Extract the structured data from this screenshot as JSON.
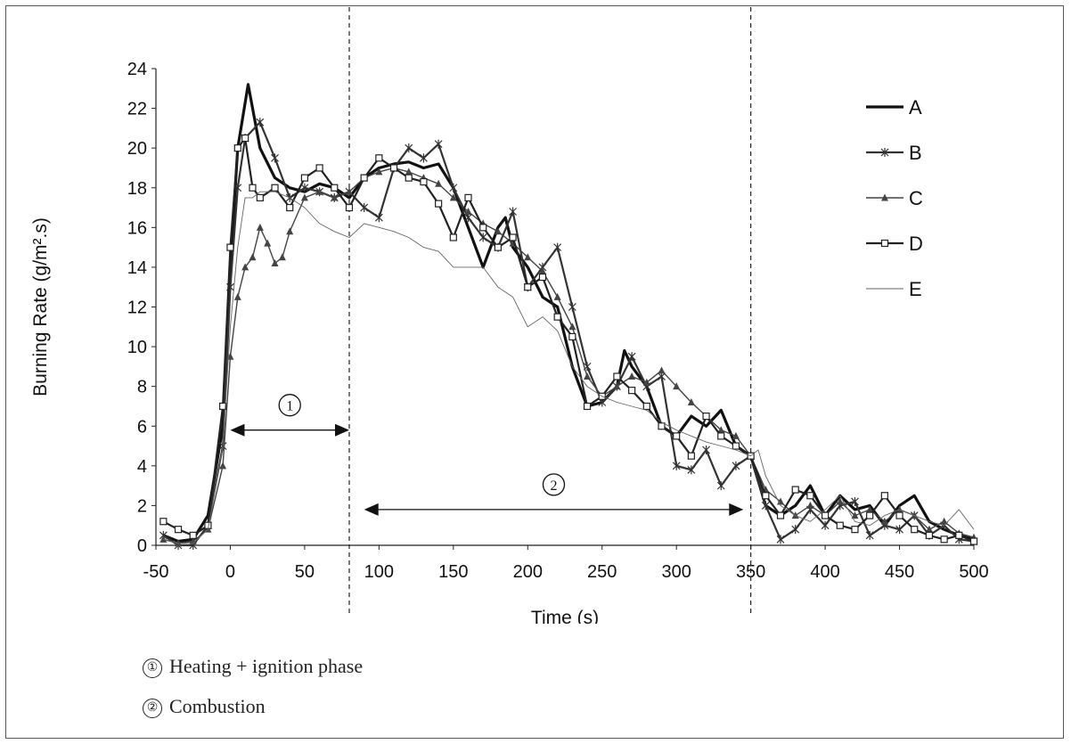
{
  "chart_data": {
    "type": "line",
    "title": "",
    "xlabel": "Time (s)",
    "ylabel": "Burning Rate (g/m².s)",
    "xlim": [
      -50,
      500
    ],
    "ylim": [
      0,
      24
    ],
    "x_ticks": [
      "-50",
      "0",
      "50",
      "100",
      "150",
      "200",
      "250",
      "300",
      "350",
      "400",
      "450",
      "500"
    ],
    "y_ticks": [
      "0",
      "2",
      "4",
      "6",
      "8",
      "10",
      "12",
      "14",
      "16",
      "18",
      "20",
      "22",
      "24"
    ],
    "legend_position": "top-right",
    "vertical_lines_x": [
      80,
      350
    ],
    "series": [
      {
        "name": "A",
        "color": "#111111",
        "marker": "none",
        "x": [
          -45,
          -35,
          -25,
          -15,
          -5,
          0,
          5,
          12,
          20,
          30,
          40,
          50,
          60,
          70,
          80,
          90,
          100,
          110,
          120,
          130,
          140,
          150,
          160,
          170,
          180,
          185,
          190,
          200,
          210,
          220,
          230,
          240,
          250,
          260,
          265,
          270,
          280,
          290,
          300,
          310,
          320,
          330,
          340,
          350,
          360,
          370,
          380,
          390,
          400,
          410,
          420,
          430,
          440,
          450,
          460,
          470,
          480,
          490,
          500
        ],
        "y": [
          0.5,
          0.2,
          0.3,
          1.5,
          6,
          14,
          20,
          23.2,
          20,
          18.5,
          18,
          17.8,
          18.2,
          18,
          17.5,
          18.5,
          19,
          19.2,
          19.3,
          19,
          19.2,
          18,
          16,
          14,
          16,
          16.5,
          15,
          14,
          12.5,
          12,
          9,
          7,
          7.2,
          8,
          9.8,
          9,
          8,
          6,
          5.5,
          6.5,
          6,
          6.8,
          5,
          4.5,
          2,
          1.5,
          2,
          3,
          1.5,
          2.5,
          1.8,
          2,
          1,
          2,
          2.5,
          1.2,
          0.8,
          0.5,
          0.3
        ]
      },
      {
        "name": "B",
        "color": "#333333",
        "marker": "star",
        "x": [
          -45,
          -35,
          -25,
          -15,
          -5,
          0,
          5,
          10,
          20,
          30,
          40,
          50,
          60,
          70,
          80,
          90,
          100,
          110,
          120,
          130,
          140,
          150,
          160,
          170,
          180,
          190,
          200,
          210,
          220,
          230,
          240,
          250,
          260,
          270,
          280,
          290,
          300,
          310,
          320,
          330,
          340,
          350,
          360,
          370,
          380,
          390,
          400,
          410,
          420,
          430,
          440,
          450,
          460,
          470,
          480,
          490,
          500
        ],
        "y": [
          0.5,
          0,
          0,
          1,
          5,
          13,
          18,
          20.5,
          21.3,
          19.5,
          17.5,
          18,
          17.8,
          17.5,
          17.8,
          17,
          16.5,
          19,
          20,
          19.5,
          20.2,
          18,
          16.5,
          15.5,
          15,
          16.8,
          13,
          14,
          15,
          12,
          9,
          7.2,
          8,
          9.5,
          8,
          8.5,
          4,
          3.8,
          4.8,
          3,
          4,
          4.5,
          2,
          0.3,
          0.8,
          1.8,
          1,
          2,
          2.2,
          0.5,
          1,
          0.8,
          1.5,
          0.5,
          1,
          0.3,
          0.2
        ]
      },
      {
        "name": "C",
        "color": "#444444",
        "marker": "triangle",
        "x": [
          -45,
          -35,
          -25,
          -15,
          -5,
          0,
          5,
          10,
          15,
          20,
          25,
          30,
          35,
          40,
          50,
          60,
          70,
          80,
          90,
          100,
          110,
          120,
          130,
          140,
          150,
          160,
          170,
          180,
          190,
          200,
          210,
          220,
          230,
          240,
          250,
          260,
          270,
          280,
          290,
          300,
          310,
          320,
          330,
          340,
          350,
          360,
          370,
          380,
          390,
          400,
          410,
          420,
          430,
          440,
          450,
          460,
          470,
          480,
          490,
          500
        ],
        "y": [
          0.3,
          0.1,
          0.2,
          0.8,
          4,
          9.5,
          12.5,
          14,
          14.5,
          16,
          15.2,
          14.2,
          14.5,
          15.8,
          17.5,
          17.8,
          17.5,
          17.8,
          18.5,
          18.8,
          19,
          18.8,
          18.5,
          18.2,
          17.5,
          16.8,
          16.2,
          15.8,
          15.2,
          14.5,
          13.8,
          12.5,
          11,
          8.5,
          7.5,
          8,
          8.5,
          8.2,
          8.8,
          8,
          7.2,
          6.5,
          5.8,
          5.5,
          4.5,
          2.8,
          2.2,
          1.5,
          2,
          1.5,
          2.2,
          1.5,
          1.8,
          1.2,
          1.8,
          1.5,
          0.8,
          1.2,
          0.6,
          0.4
        ]
      },
      {
        "name": "D",
        "color": "#222222",
        "marker": "square",
        "x": [
          -45,
          -35,
          -25,
          -15,
          -5,
          0,
          5,
          10,
          15,
          20,
          30,
          40,
          50,
          60,
          70,
          80,
          90,
          100,
          110,
          120,
          130,
          140,
          150,
          160,
          170,
          180,
          190,
          200,
          210,
          220,
          230,
          240,
          250,
          260,
          270,
          280,
          290,
          300,
          310,
          320,
          330,
          340,
          350,
          360,
          370,
          380,
          390,
          400,
          410,
          420,
          430,
          440,
          450,
          460,
          470,
          480,
          490,
          500
        ],
        "y": [
          1.2,
          0.8,
          0.5,
          1,
          7,
          15,
          20,
          20.5,
          18,
          17.5,
          18,
          17,
          18.5,
          19,
          18,
          17,
          18.5,
          19.5,
          19,
          18.5,
          18.3,
          17.2,
          15.5,
          17.5,
          16,
          15,
          15.5,
          13,
          13.5,
          11.5,
          10.5,
          7,
          7.5,
          8.5,
          7.8,
          7,
          6,
          5.5,
          4.5,
          6.5,
          5.5,
          5,
          4.5,
          2.5,
          1.5,
          2.8,
          2.5,
          1.5,
          1,
          0.8,
          1.5,
          2.5,
          1.5,
          0.8,
          0.5,
          0.3,
          0.5,
          0.2
        ]
      },
      {
        "name": "E",
        "color": "#666666",
        "marker": "none",
        "x": [
          -45,
          -35,
          -25,
          -15,
          -5,
          0,
          5,
          10,
          15,
          20,
          30,
          40,
          50,
          60,
          70,
          80,
          90,
          100,
          110,
          120,
          130,
          140,
          150,
          160,
          170,
          180,
          190,
          200,
          210,
          220,
          230,
          240,
          250,
          260,
          270,
          280,
          290,
          300,
          310,
          320,
          330,
          340,
          350,
          355,
          360,
          370,
          380,
          390,
          400,
          410,
          420,
          430,
          440,
          450,
          460,
          470,
          480,
          490,
          500
        ],
        "y": [
          0.3,
          0.1,
          0.1,
          0.8,
          5,
          11,
          15,
          17.5,
          17.5,
          17.8,
          17.8,
          17.5,
          17,
          16.2,
          15.8,
          15.5,
          16.2,
          16,
          15.8,
          15.5,
          15,
          14.8,
          14,
          14,
          14,
          13,
          12.5,
          11,
          11.5,
          10.8,
          9,
          8,
          7.5,
          7.2,
          7,
          6.8,
          6.2,
          5.8,
          5.5,
          5.2,
          5,
          4.8,
          4.5,
          4.8,
          3.5,
          2,
          1.5,
          1.2,
          1.8,
          2.5,
          1.2,
          1,
          1.5,
          1.8,
          1.5,
          1.2,
          1,
          1.8,
          0.8
        ]
      }
    ],
    "annotations": [
      {
        "label": "①",
        "x_start": 0,
        "x_end": 80,
        "y": 5.8
      },
      {
        "label": "②",
        "x_start": 90,
        "x_end": 345,
        "y": 1.8
      }
    ]
  },
  "notes": [
    {
      "symbol": "①",
      "text": "Heating + ignition phase"
    },
    {
      "symbol": "②",
      "text": "Combustion"
    }
  ]
}
